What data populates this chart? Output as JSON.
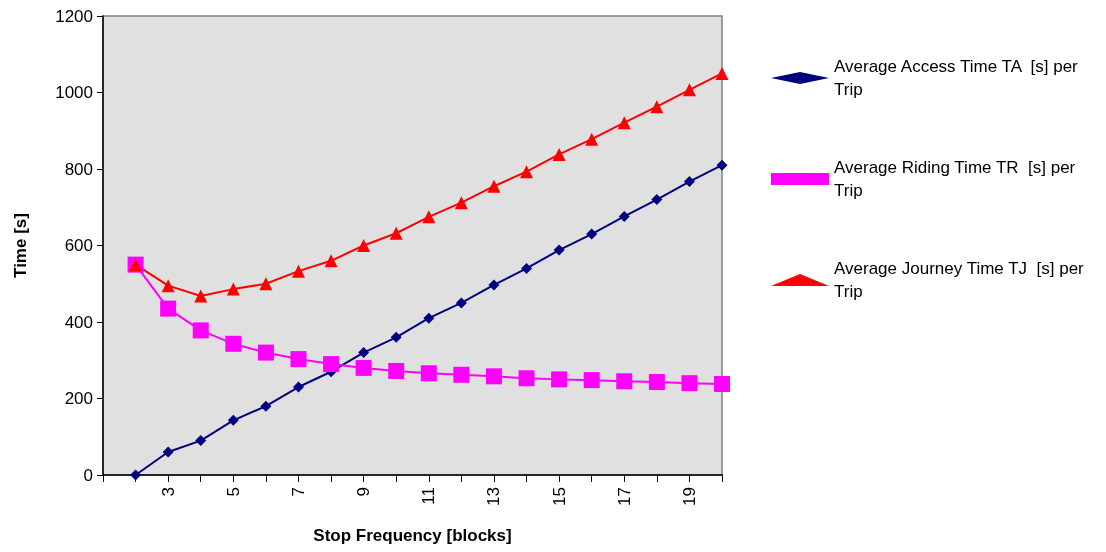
{
  "chart_data": {
    "type": "line",
    "xlabel": "Stop Frequency [blocks]",
    "ylabel": "Time [s]",
    "categories": [
      null,
      null,
      "3",
      null,
      "5",
      null,
      "7",
      null,
      "9",
      null,
      "11",
      null,
      "13",
      null,
      "15",
      null,
      "17",
      null,
      "19",
      null
    ],
    "ylim": [
      0,
      1200
    ],
    "yticks": [
      0,
      200,
      400,
      600,
      800,
      1000,
      1200
    ],
    "grid": false,
    "legend": "right",
    "line_style": "solid",
    "series": [
      {
        "name": "Average Access Time TA  [s] per Trip",
        "color": "#000080",
        "marker": "diamond",
        "values": [
          null,
          0,
          60,
          90,
          143,
          180,
          230,
          270,
          320,
          360,
          410,
          450,
          497,
          540,
          588,
          630,
          676,
          720,
          767,
          810
        ]
      },
      {
        "name": "Average Riding Time TR  [s] per Trip",
        "color": "#ff00ff",
        "marker": "square",
        "values": [
          null,
          550,
          435,
          378,
          343,
          320,
          303,
          290,
          280,
          272,
          266,
          262,
          258,
          253,
          250,
          248,
          245,
          243,
          240,
          238
        ]
      },
      {
        "name": "Average Journey Time TJ  [s] per Trip",
        "color": "#ff0000",
        "marker": "triangle",
        "values": [
          null,
          550,
          495,
          468,
          486,
          500,
          533,
          560,
          600,
          632,
          675,
          712,
          755,
          793,
          838,
          878,
          921,
          963,
          1007,
          1050
        ]
      }
    ]
  }
}
